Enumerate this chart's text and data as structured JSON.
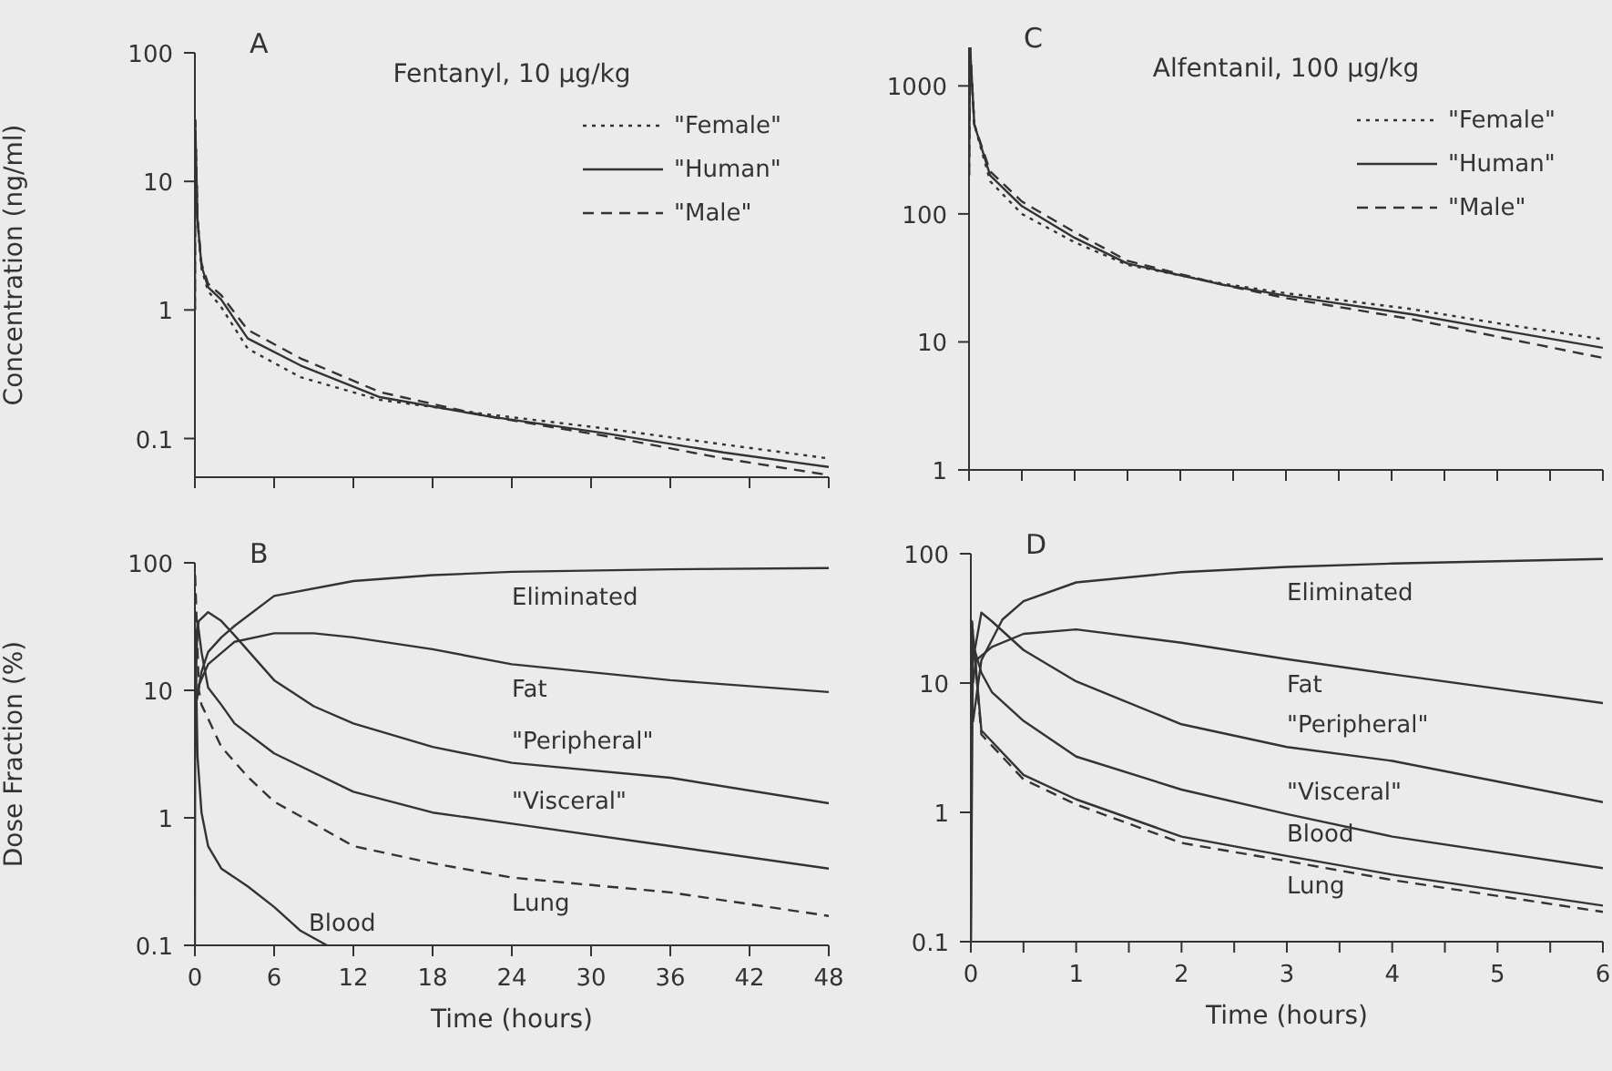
{
  "chart_data": [
    {
      "type": "line",
      "title": "Fentanyl, 10 µg/kg",
      "annotations": [
        "A"
      ],
      "ylabel": "Concentration (ng/ml)",
      "log": "y",
      "ylim": [
        0.05,
        100
      ],
      "yticks": [
        0.1,
        1,
        10,
        100
      ],
      "xlim": [
        0,
        48
      ],
      "xticks": [
        0,
        6,
        12,
        18,
        24,
        30,
        36,
        42,
        48
      ],
      "tick_labels": "y",
      "legend": "top right",
      "grid": false,
      "marker": "none",
      "series": [
        {
          "name": "\"Female\"",
          "color": "#333333",
          "line_style": "dotted",
          "x": [
            0,
            0.02,
            0.2,
            0.5,
            1,
            2,
            4,
            8,
            14,
            22,
            31,
            40,
            48
          ],
          "values": [
            1,
            30,
            5,
            2.1,
            1.4,
            1.05,
            0.5,
            0.3,
            0.2,
            0.155,
            0.12,
            0.09,
            0.07
          ]
        },
        {
          "name": "\"Human\"",
          "color": "#333333",
          "line_style": "solid",
          "x": [
            0,
            0.02,
            0.2,
            0.5,
            1,
            2,
            4,
            8,
            14,
            22,
            31,
            40,
            48
          ],
          "values": [
            1,
            30,
            5,
            2.2,
            1.5,
            1.2,
            0.6,
            0.37,
            0.21,
            0.15,
            0.11,
            0.078,
            0.06
          ]
        },
        {
          "name": "\"Male\"",
          "color": "#333333",
          "line_style": "dashed",
          "x": [
            0,
            0.02,
            0.2,
            0.5,
            1,
            2,
            4,
            8,
            14,
            22,
            31,
            40,
            48
          ],
          "values": [
            1,
            30,
            5,
            2.3,
            1.6,
            1.3,
            0.7,
            0.42,
            0.23,
            0.15,
            0.105,
            0.07,
            0.052
          ]
        }
      ]
    },
    {
      "type": "line",
      "title": "Alfentanil, 100 µg/kg",
      "annotations": [
        "C"
      ],
      "log": "y",
      "ylim": [
        1,
        2000
      ],
      "yticks": [
        1,
        10,
        100,
        1000
      ],
      "xlim": [
        0,
        6
      ],
      "xticks": [
        0,
        {
          "value": 0.5,
          "label": null
        },
        1,
        {
          "value": 1.5,
          "label": null
        },
        2,
        {
          "value": 2.5,
          "label": null
        },
        3,
        {
          "value": 3.5,
          "label": null
        },
        4,
        {
          "value": 4.5,
          "label": null
        },
        5,
        {
          "value": 5.5,
          "label": null
        },
        6
      ],
      "tick_labels": "y",
      "legend": "top right",
      "grid": false,
      "marker": "none",
      "series": [
        {
          "name": "\"Female\"",
          "color": "#333333",
          "line_style": "dotted",
          "x": [
            0,
            0.01,
            0.05,
            0.2,
            0.5,
            1,
            1.5,
            2.4,
            3,
            4.2,
            5,
            6
          ],
          "values": [
            200,
            2000,
            500,
            180,
            100,
            60,
            40,
            28.5,
            24,
            18,
            14,
            10.5
          ]
        },
        {
          "name": "\"Human\"",
          "color": "#333333",
          "line_style": "solid",
          "x": [
            0,
            0.01,
            0.05,
            0.2,
            0.5,
            1,
            1.5,
            2.4,
            3,
            4.2,
            5,
            6
          ],
          "values": [
            200,
            2000,
            500,
            200,
            115,
            65,
            41,
            28,
            23,
            16.4,
            12.5,
            9
          ]
        },
        {
          "name": "\"Male\"",
          "color": "#333333",
          "line_style": "dashed",
          "x": [
            0,
            0.01,
            0.05,
            0.2,
            0.5,
            1,
            1.5,
            2.4,
            3,
            4.2,
            5,
            6
          ],
          "values": [
            200,
            2000,
            500,
            215,
            125,
            72,
            43,
            28,
            22,
            15,
            11,
            7.5
          ]
        }
      ]
    },
    {
      "type": "line",
      "annotations": [
        "B"
      ],
      "xlabel": "Time (hours)",
      "ylabel": "Dose Fraction (%)",
      "log": "y",
      "ylim": [
        0.1,
        100
      ],
      "yticks": [
        0.1,
        1,
        10,
        100
      ],
      "xlim": [
        0,
        48
      ],
      "xticks": [
        0,
        6,
        12,
        18,
        24,
        30,
        36,
        42,
        48
      ],
      "legend": false,
      "grid": false,
      "marker": "none",
      "series": [
        {
          "name": "Eliminated",
          "color": "#333333",
          "line_style": "solid",
          "x": [
            0.1,
            0.5,
            1,
            2,
            3,
            6,
            12,
            18,
            24,
            36,
            48
          ],
          "values": [
            8,
            14,
            20,
            26,
            32,
            55,
            72,
            80,
            85,
            89,
            91
          ]
        },
        {
          "name": "Fat",
          "color": "#333333",
          "line_style": "solid",
          "x": [
            0.1,
            0.3,
            1,
            3,
            6,
            9,
            12,
            18,
            24,
            36,
            48
          ],
          "values": [
            8,
            11,
            16,
            24,
            28,
            28,
            26,
            21,
            16,
            12,
            9.7
          ]
        },
        {
          "name": "\"Peripheral\"",
          "color": "#333333",
          "line_style": "solid",
          "x": [
            0.05,
            0.3,
            1,
            2,
            3,
            6,
            9,
            12,
            18,
            24,
            36,
            48
          ],
          "values": [
            25,
            35,
            41,
            35,
            27,
            12,
            7.5,
            5.5,
            3.6,
            2.7,
            2.06,
            1.3
          ]
        },
        {
          "name": "\"Visceral\"",
          "color": "#333333",
          "line_style": "solid",
          "x": [
            0.02,
            0.2,
            0.5,
            1,
            2,
            3,
            6,
            12,
            18,
            24,
            36,
            48
          ],
          "values": [
            8,
            35,
            20,
            10.5,
            7.7,
            5.5,
            3.2,
            1.6,
            1.1,
            0.9,
            0.6,
            0.4
          ]
        },
        {
          "name": "Blood",
          "color": "#333333",
          "line_style": "solid",
          "x": [
            0,
            0.03,
            0.2,
            0.5,
            1,
            2,
            4,
            6,
            8,
            10
          ],
          "values": [
            0.1,
            30,
            3,
            1.1,
            0.6,
            0.4,
            0.29,
            0.2,
            0.13,
            0.1
          ]
        },
        {
          "name": "Lung",
          "color": "#333333",
          "line_style": "dashed",
          "x": [
            0.02,
            0.3,
            0.5,
            1,
            2,
            4,
            6,
            9,
            12,
            18,
            24,
            36,
            48
          ],
          "values": [
            80,
            10,
            7.7,
            6,
            3.6,
            2.1,
            1.34,
            0.9,
            0.6,
            0.44,
            0.34,
            0.26,
            0.17
          ]
        }
      ]
    },
    {
      "type": "line",
      "annotations": [
        "D"
      ],
      "xlabel": "Time (hours)",
      "log": "y",
      "ylim": [
        0.1,
        100
      ],
      "yticks": [
        0.1,
        1,
        10,
        100
      ],
      "xlim": [
        0,
        6
      ],
      "xticks": [
        0,
        {
          "value": 0.5,
          "label": null
        },
        1,
        {
          "value": 1.5,
          "label": null
        },
        2,
        {
          "value": 2.5,
          "label": null
        },
        3,
        {
          "value": 3.5,
          "label": null
        },
        4,
        {
          "value": 4.5,
          "label": null
        },
        5,
        {
          "value": 5.5,
          "label": null
        },
        6
      ],
      "legend": false,
      "grid": false,
      "marker": "none",
      "series": [
        {
          "name": "Eliminated",
          "color": "#333333",
          "line_style": "solid",
          "x": [
            0.02,
            0.1,
            0.3,
            0.5,
            1,
            2,
            3,
            4,
            6
          ],
          "values": [
            5,
            15,
            31,
            43,
            60,
            72,
            79,
            84,
            91
          ]
        },
        {
          "name": "Fat",
          "color": "#333333",
          "line_style": "solid",
          "x": [
            0.02,
            0.05,
            0.2,
            0.5,
            1,
            2,
            3,
            4,
            6
          ],
          "values": [
            10,
            15,
            19,
            24,
            26,
            20.5,
            15.3,
            11.7,
            7
          ]
        },
        {
          "name": "\"Peripheral\"",
          "color": "#333333",
          "line_style": "solid",
          "x": [
            0.02,
            0.1,
            0.2,
            0.5,
            1,
            2,
            3,
            4,
            6
          ],
          "values": [
            15,
            35,
            30,
            18,
            10.3,
            4.8,
            3.2,
            2.5,
            1.2
          ]
        },
        {
          "name": "\"Visceral\"",
          "color": "#333333",
          "line_style": "solid",
          "x": [
            0,
            0.02,
            0.1,
            0.2,
            0.5,
            1,
            2,
            3,
            4,
            6
          ],
          "values": [
            0.1,
            20,
            12,
            8.5,
            5.1,
            2.7,
            1.5,
            0.97,
            0.65,
            0.37
          ]
        },
        {
          "name": "Blood",
          "color": "#333333",
          "line_style": "solid",
          "x": [
            0,
            0.01,
            0.1,
            0.5,
            1,
            2,
            3,
            4,
            6
          ],
          "values": [
            0.1,
            30,
            4.3,
            1.95,
            1.26,
            0.65,
            0.46,
            0.33,
            0.19
          ]
        },
        {
          "name": "Lung",
          "color": "#333333",
          "line_style": "dashed",
          "x": [
            0.01,
            0.1,
            0.5,
            1,
            2,
            3,
            4,
            6
          ],
          "values": [
            30,
            4,
            1.8,
            1.15,
            0.58,
            0.42,
            0.3,
            0.17
          ]
        }
      ]
    }
  ]
}
